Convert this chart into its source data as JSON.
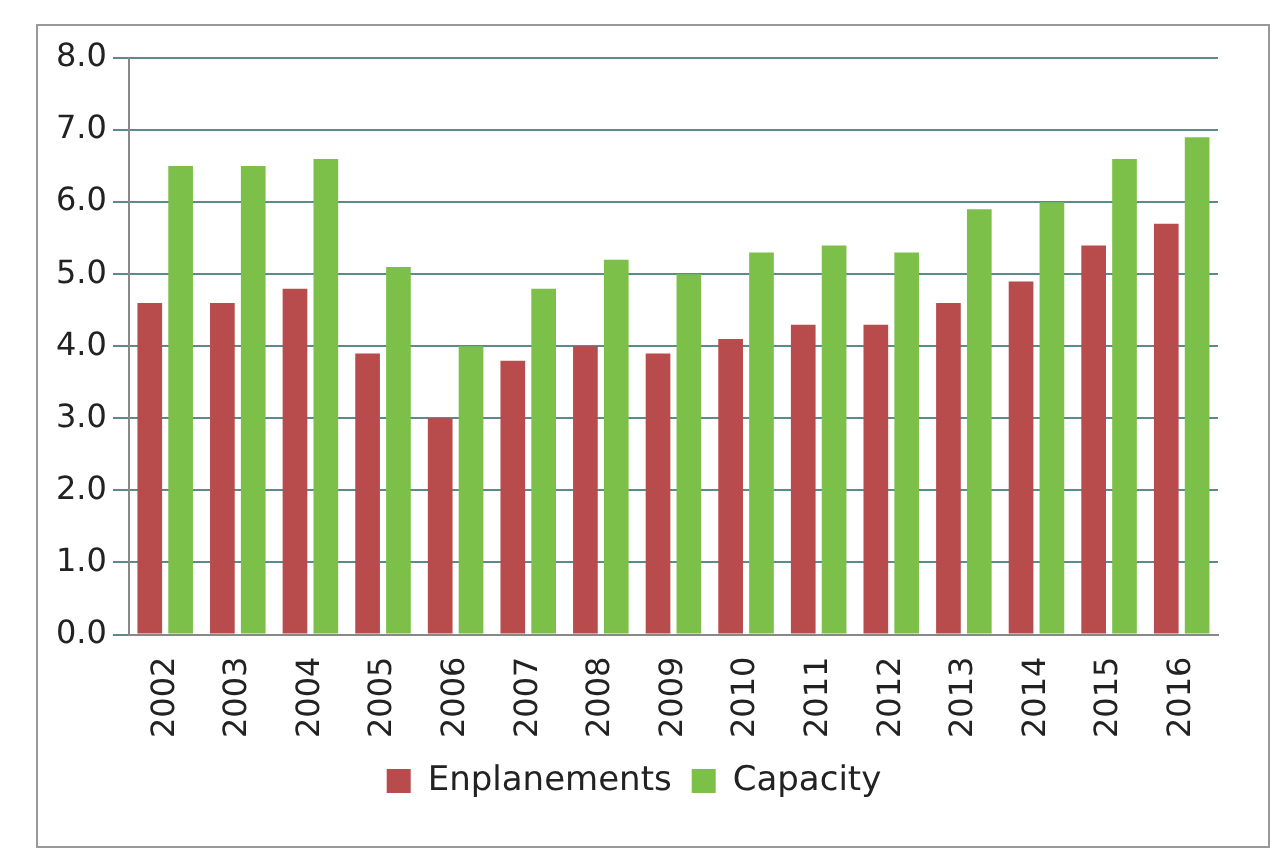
{
  "chart_data": {
    "type": "bar",
    "categories": [
      "2002",
      "2003",
      "2004",
      "2005",
      "2006",
      "2007",
      "2008",
      "2009",
      "2010",
      "2011",
      "2012",
      "2013",
      "2014",
      "2015",
      "2016"
    ],
    "series": [
      {
        "name": "Enplanements",
        "color": "#b84c4c",
        "values": [
          4.6,
          4.6,
          4.8,
          3.9,
          3.0,
          3.8,
          4.0,
          3.9,
          4.1,
          4.3,
          4.3,
          4.6,
          4.9,
          5.4,
          5.7
        ]
      },
      {
        "name": "Capacity",
        "color": "#7cc04a",
        "values": [
          6.5,
          6.5,
          6.6,
          5.1,
          4.0,
          4.8,
          5.2,
          5.0,
          5.3,
          5.4,
          5.3,
          5.9,
          6.0,
          6.6,
          6.9
        ]
      }
    ],
    "ylim": [
      0,
      8
    ],
    "yticks": [
      {
        "value": 0,
        "label": "0.0"
      },
      {
        "value": 1,
        "label": "1.0"
      },
      {
        "value": 2,
        "label": "2.0"
      },
      {
        "value": 3,
        "label": "3.0"
      },
      {
        "value": 4,
        "label": "4.0"
      },
      {
        "value": 5,
        "label": "5.0"
      },
      {
        "value": 6,
        "label": "6.0"
      },
      {
        "value": 7,
        "label": "7.0"
      },
      {
        "value": 8,
        "label": "8.0"
      }
    ],
    "grid": "y",
    "legend": "bottom"
  }
}
